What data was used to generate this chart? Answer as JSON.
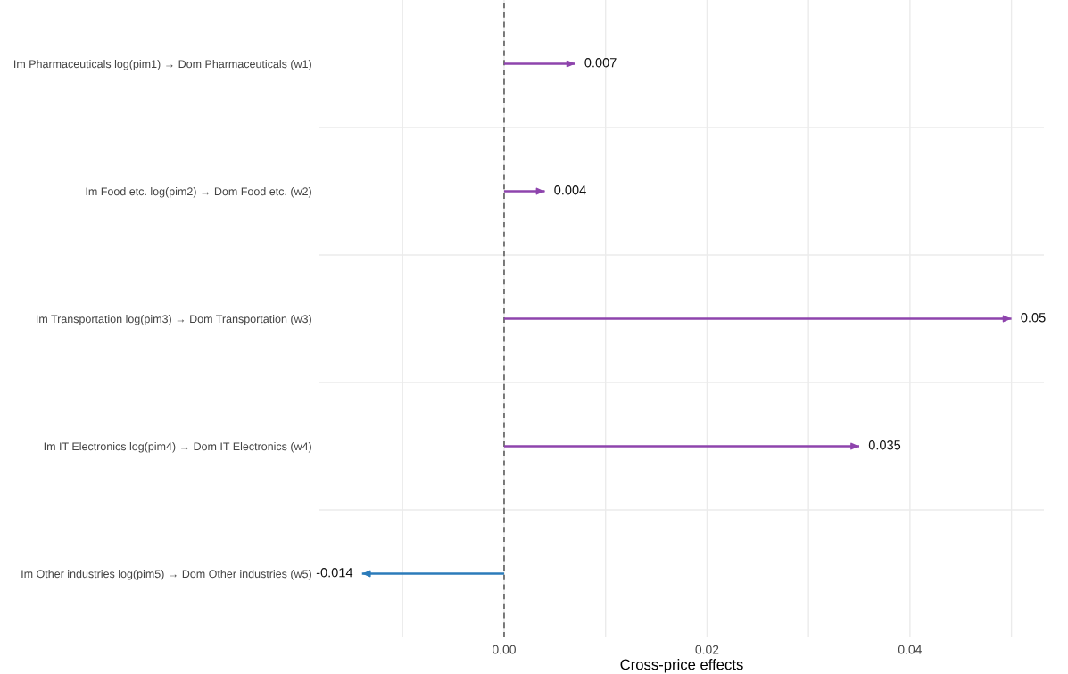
{
  "chart_data": {
    "type": "bar",
    "orientation": "horizontal",
    "xlabel": "Cross-price effects",
    "categories": [
      "Im Pharmaceuticals log(pim1) → Dom Pharmaceuticals (w1)",
      "Im Food etc. log(pim2) → Dom Food etc. (w2)",
      "Im Transportation log(pim3) → Dom Transportation (w3)",
      "Im IT Electronics log(pim4) → Dom IT Electronics (w4)",
      "Im Other industries log(pim5) → Dom Other industries (w5)"
    ],
    "values": [
      0.007,
      0.004,
      0.05,
      0.035,
      -0.014
    ],
    "colors": [
      "#8e44ad",
      "#8e44ad",
      "#8e44ad",
      "#8e44ad",
      "#2b7bba"
    ],
    "value_labels": [
      "0.007",
      "0.004",
      "0.05",
      "0.035",
      "-0.014"
    ],
    "xlim": [
      -0.0182,
      0.0532
    ],
    "xticks": [
      {
        "value": -0.01,
        "label": null
      },
      {
        "value": 0,
        "label": "0.00"
      },
      {
        "value": 0.01,
        "label": null
      },
      {
        "value": 0.02,
        "label": "0.02"
      },
      {
        "value": 0.03,
        "label": null
      },
      {
        "value": 0.04,
        "label": "0.04"
      },
      {
        "value": 0.05,
        "label": null
      }
    ],
    "ref_lines": [
      {
        "axis": "x",
        "value": 0,
        "color": "#555555",
        "line_style": "dashed"
      }
    ],
    "grid": true
  }
}
